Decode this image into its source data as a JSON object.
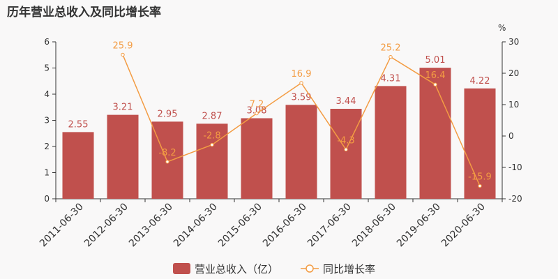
{
  "title": "历年营业总收入及同比增长率",
  "colors": {
    "bar": "#c0504d",
    "line": "#f39c43",
    "axis": "#333333",
    "background": "#f9f8f8"
  },
  "chart_data": {
    "type": "bar",
    "categories": [
      "2011-06-30",
      "2012-06-30",
      "2013-06-30",
      "2014-06-30",
      "2015-06-30",
      "2016-06-30",
      "2017-06-30",
      "2018-06-30",
      "2019-06-30",
      "2020-06-30"
    ],
    "series": [
      {
        "name": "营业总收入（亿）",
        "type": "bar",
        "axis": "left",
        "values": [
          2.55,
          3.21,
          2.95,
          2.87,
          3.08,
          3.59,
          3.44,
          4.31,
          5.01,
          4.22
        ]
      },
      {
        "name": "同比增长率",
        "type": "line",
        "axis": "right",
        "values": [
          null,
          25.9,
          -8.2,
          -2.8,
          7.2,
          16.9,
          -4.3,
          25.2,
          16.4,
          -15.9
        ]
      }
    ],
    "bar_labels": [
      "2.55",
      "3.21",
      "2.95",
      "2.87",
      "3.08",
      "3.59",
      "3.44",
      "4.31",
      "5.01",
      "4.22"
    ],
    "line_labels": [
      "",
      "25.9",
      "-8.2",
      "-2.8",
      "7.2",
      "16.9",
      "-4.3",
      "25.2",
      "16.4",
      "-15.9"
    ],
    "y_left": {
      "ticks": [
        0,
        1,
        2,
        3,
        4,
        5,
        6
      ],
      "range": [
        0,
        6
      ]
    },
    "y_right": {
      "ticks": [
        -20,
        -10,
        0,
        10,
        20,
        30
      ],
      "range": [
        -20,
        30
      ],
      "unit": "%"
    },
    "legend": {
      "position": "bottom",
      "bar_label": "营业总收入（亿）",
      "line_label": "同比增长率"
    },
    "grid": false
  }
}
